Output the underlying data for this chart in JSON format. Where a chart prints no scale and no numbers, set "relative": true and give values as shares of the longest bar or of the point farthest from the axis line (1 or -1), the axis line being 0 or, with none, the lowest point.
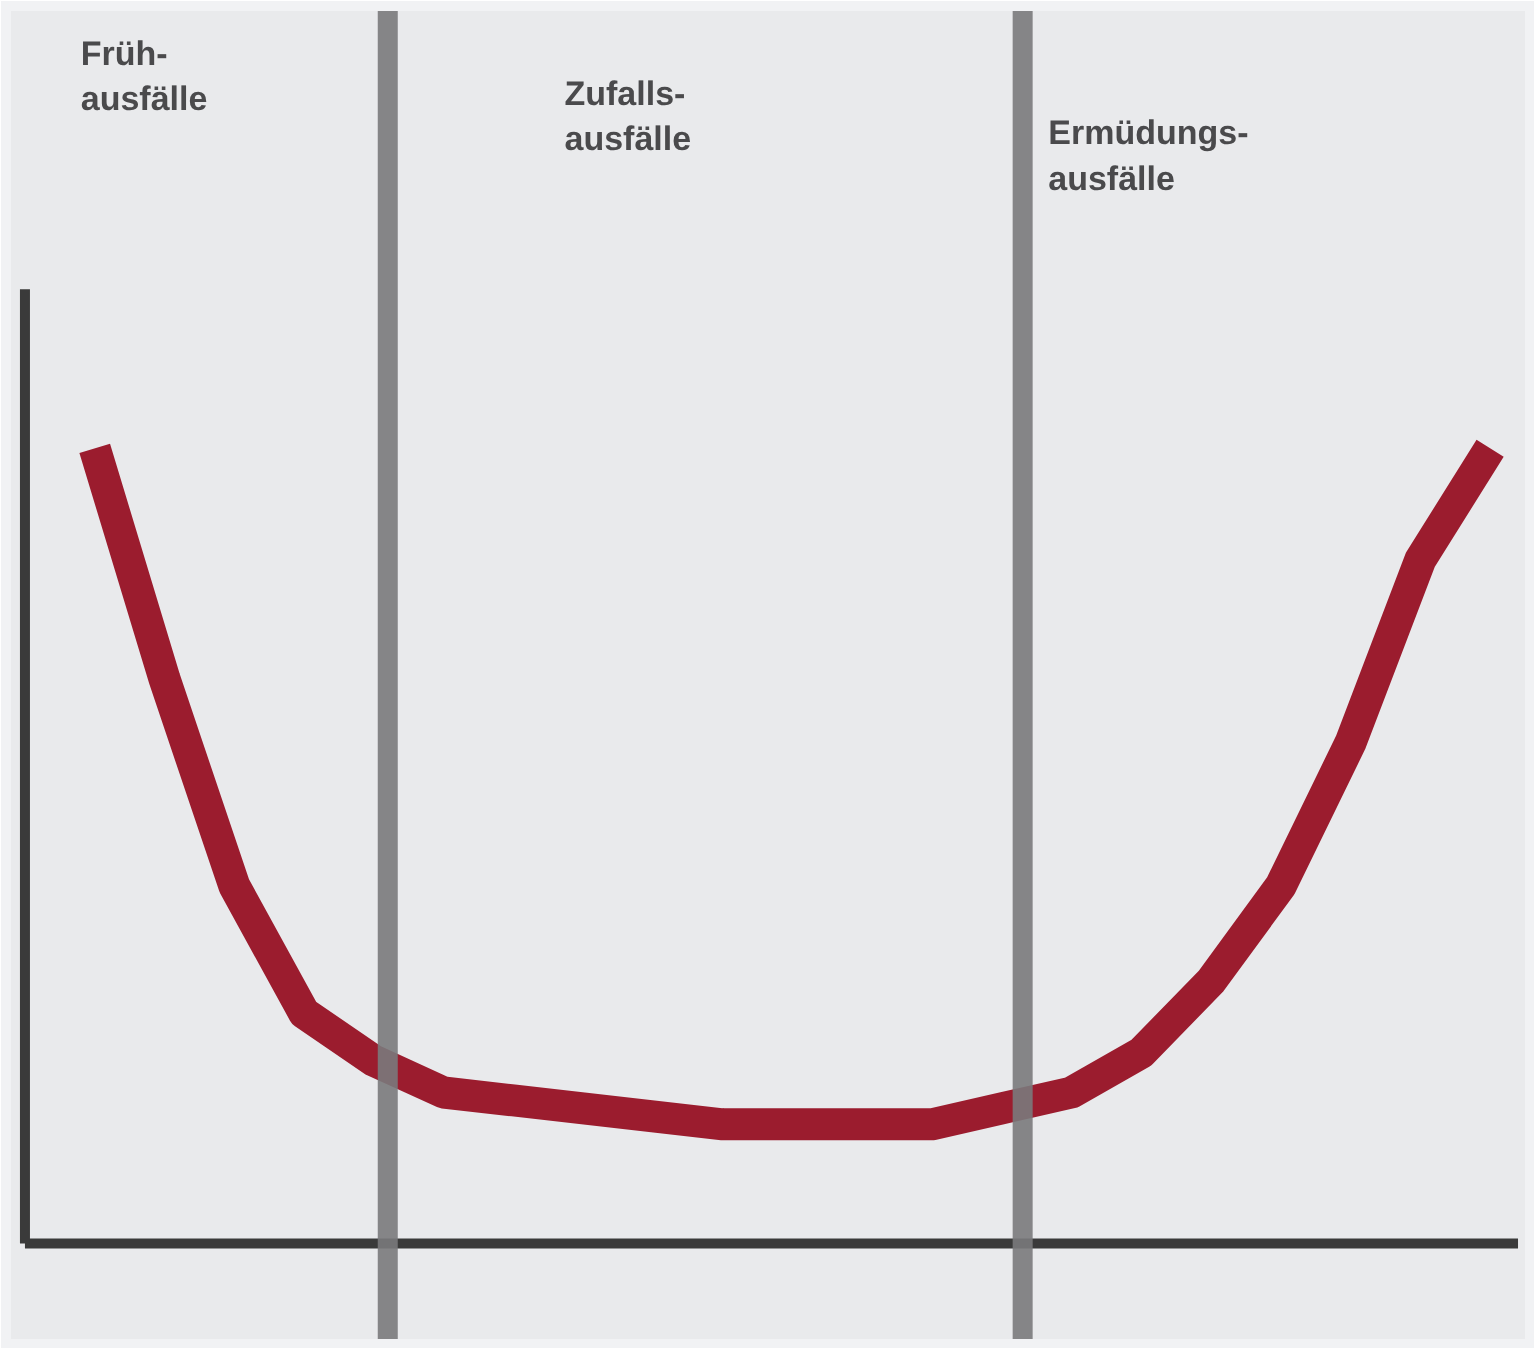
{
  "chart_data": {
    "type": "line",
    "relative": true,
    "categories": [
      null,
      null,
      null,
      null,
      null,
      null,
      null,
      null,
      null,
      null,
      null,
      null,
      null,
      null,
      null,
      null,
      null,
      null,
      null,
      null,
      null
    ],
    "series": [
      {
        "color": "#9b1c2e",
        "values": [
          1.0,
          0.71,
          0.45,
          0.29,
          0.23,
          0.19,
          0.18,
          0.17,
          0.16,
          0.15,
          0.15,
          0.15,
          0.15,
          0.17,
          0.19,
          0.24,
          0.33,
          0.45,
          0.63,
          0.86,
          1.0
        ]
      }
    ],
    "annotations": [
      "Früh-\nausfälle",
      "Zufalls-\nausfälle",
      "Ermüdungs-\nausfälle"
    ],
    "grid": false,
    "marker": "none",
    "line_style": "solid"
  }
}
